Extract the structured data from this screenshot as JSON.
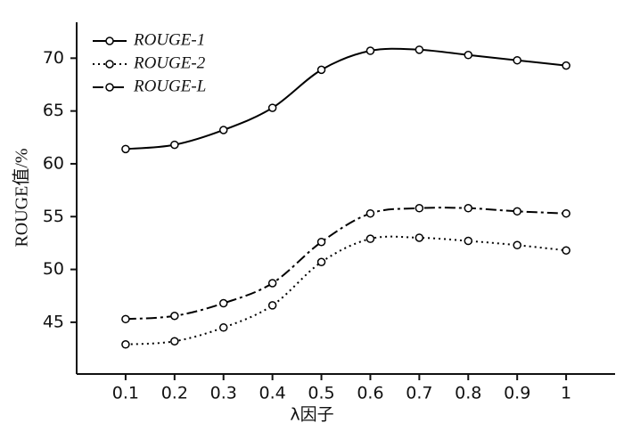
{
  "chart_data": {
    "type": "line",
    "x_label": "λ因子",
    "y_label": "ROUGE值/%",
    "x": [
      0.1,
      0.2,
      0.3,
      0.4,
      0.5,
      0.6,
      0.7,
      0.8,
      0.9,
      1
    ],
    "series": [
      {
        "name": "ROUGE-1",
        "color": "#000000",
        "linestyle": "solid",
        "values": [
          61.4,
          61.8,
          63.2,
          65.3,
          68.9,
          70.7,
          70.8,
          70.3,
          69.8,
          69.3
        ]
      },
      {
        "name": "ROUGE-2",
        "color": "#000000",
        "linestyle": "dotted",
        "values": [
          42.9,
          43.2,
          44.5,
          46.6,
          50.7,
          52.9,
          53.0,
          52.7,
          52.3,
          51.8
        ]
      },
      {
        "name": "ROUGE-L",
        "color": "#000000",
        "linestyle": "dashdot",
        "values": [
          45.3,
          45.6,
          46.8,
          48.7,
          52.6,
          55.3,
          55.8,
          55.8,
          55.5,
          55.3
        ]
      }
    ],
    "xlim": [
      0,
      1.1
    ],
    "xticks": [
      0.1,
      0.2,
      0.3,
      0.4,
      0.5,
      0.6,
      0.7,
      0.8,
      0.9,
      1
    ],
    "ylim": [
      40.1,
      73.4
    ],
    "yticks": [
      45,
      50,
      55,
      60,
      65,
      70
    ],
    "grid": false,
    "legend": "upper left"
  }
}
